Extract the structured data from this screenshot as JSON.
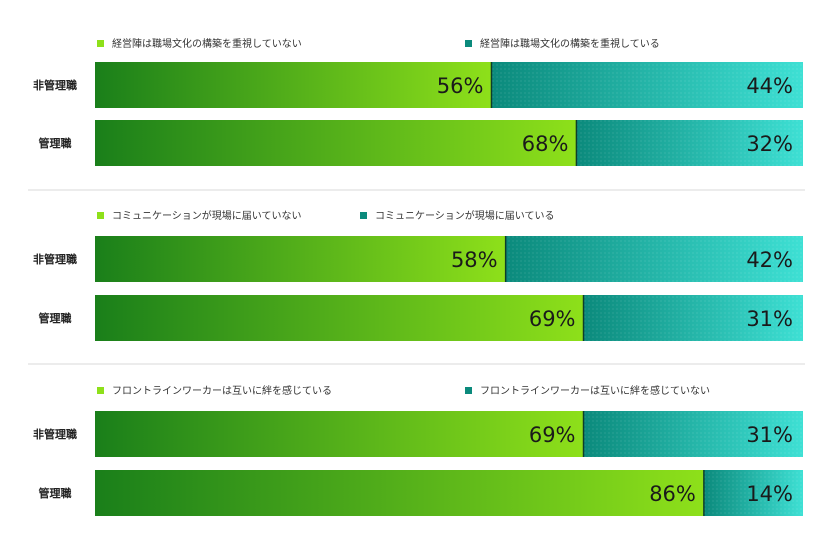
{
  "colors": {
    "green_dark": "#1a7f1a",
    "green_light": "#8ee01a",
    "teal_dark": "#0b8a7c",
    "teal_light": "#3ee0d4",
    "divider": "#d9d9d9"
  },
  "chart_data": [
    {
      "type": "bar",
      "stacked": true,
      "orientation": "horizontal",
      "categories": [
        "非管理職",
        "管理職"
      ],
      "series": [
        {
          "name": "経営陣は職場文化の構築を重視していない",
          "values": [
            56,
            68
          ],
          "labels": [
            "56%",
            "68%"
          ]
        },
        {
          "name": "経営陣は職場文化の構築を重視している",
          "values": [
            44,
            32
          ],
          "labels": [
            "44%",
            "32%"
          ]
        }
      ],
      "xlim": [
        0,
        100
      ],
      "legend": "top"
    },
    {
      "type": "bar",
      "stacked": true,
      "orientation": "horizontal",
      "categories": [
        "非管理職",
        "管理職"
      ],
      "series": [
        {
          "name": "コミュニケーションが現場に届いていない",
          "values": [
            58,
            69
          ],
          "labels": [
            "58%",
            "69%"
          ]
        },
        {
          "name": "コミュニケーションが現場に届いている",
          "values": [
            42,
            31
          ],
          "labels": [
            "42%",
            "31%"
          ]
        }
      ],
      "xlim": [
        0,
        100
      ],
      "legend": "top"
    },
    {
      "type": "bar",
      "stacked": true,
      "orientation": "horizontal",
      "categories": [
        "非管理職",
        "管理職"
      ],
      "series": [
        {
          "name": "フロントラインワーカーは互いに絆を感じている",
          "values": [
            69,
            86
          ],
          "labels": [
            "69%",
            "86%"
          ]
        },
        {
          "name": "フロントラインワーカーは互いに絆を感じていない",
          "values": [
            31,
            14
          ],
          "labels": [
            "31%",
            "14%"
          ]
        }
      ],
      "xlim": [
        0,
        100
      ],
      "legend": "top"
    }
  ]
}
